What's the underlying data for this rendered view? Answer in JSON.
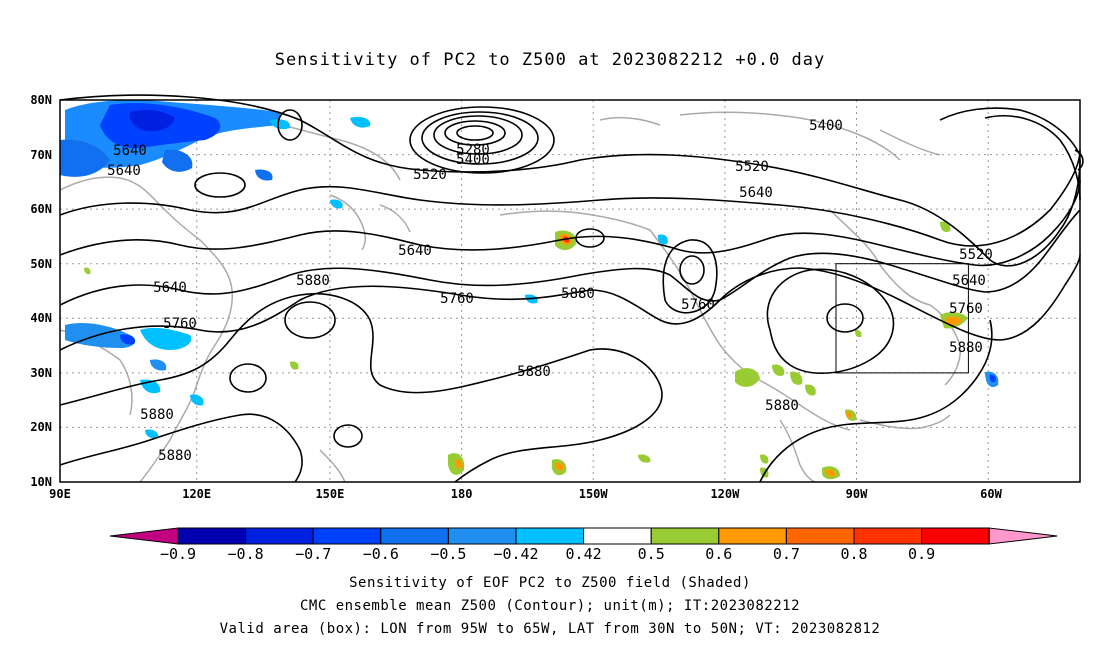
{
  "title": "Sensitivity of PC2 to Z500 at 2023082212 +0.0 day",
  "captions": [
    "Sensitivity of EOF PC2 to Z500 field (Shaded)",
    "CMC ensemble mean Z500 (Contour); unit(m); IT:2023082212",
    "Valid area (box): LON from 95W to 65W, LAT from 30N to 50N; VT: 2023082812"
  ],
  "lat_labels": [
    "80N",
    "70N",
    "60N",
    "50N",
    "40N",
    "30N",
    "20N",
    "10N"
  ],
  "lon_labels": [
    "90E",
    "120E",
    "150E",
    "180",
    "150W",
    "120W",
    "90W",
    "60W"
  ],
  "contour_labels": [
    "5640",
    "5640",
    "5520",
    "5280",
    "5400",
    "5400",
    "5520",
    "5640",
    "5640",
    "5640",
    "5760",
    "5880",
    "5760",
    "5880",
    "5760",
    "5520",
    "5640",
    "5760",
    "5880",
    "5880",
    "5880",
    "5880",
    "5880"
  ],
  "colorbar": {
    "labels": [
      "−0.9",
      "−0.8",
      "−0.7",
      "−0.6",
      "−0.5",
      "−0.42",
      "0.42",
      "0.5",
      "0.6",
      "0.7",
      "0.8",
      "0.9"
    ],
    "colors": [
      "#c0007f",
      "#0000b0",
      "#0020e0",
      "#0040ff",
      "#1070f0",
      "#2090f0",
      "#00c0ff",
      "#ffffff",
      "#99cc33",
      "#ff9900",
      "#ff6600",
      "#ff3300",
      "#ff0000",
      "#ff99cc"
    ]
  }
}
